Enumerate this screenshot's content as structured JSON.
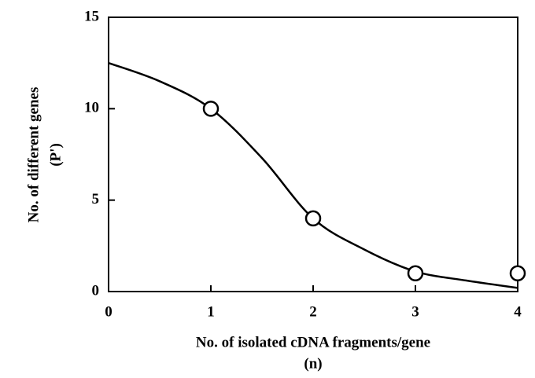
{
  "chart_data": {
    "type": "scatter",
    "x_label": "No. of isolated cDNA fragments/gene",
    "x_label_sub": "(n)",
    "y_label": "No. of different genes",
    "y_label_sub": "(P')",
    "xlim": [
      0,
      4
    ],
    "xticks": [
      0,
      1,
      2,
      3,
      4
    ],
    "ylim": [
      0,
      15
    ],
    "yticks": [
      0,
      5,
      10,
      15
    ],
    "series": [
      {
        "type": "line",
        "color": "#000000",
        "x": [
          0,
          0.5,
          1,
          1.5,
          2,
          2.5,
          3,
          3.5,
          4
        ],
        "values": [
          12.5,
          11.5,
          10,
          7.3,
          4,
          2.3,
          1.1,
          0.6,
          0.2
        ]
      },
      {
        "type": "scatter",
        "color": "#000000",
        "x": [
          1,
          2,
          3,
          4
        ],
        "values": [
          10,
          4,
          1,
          1
        ]
      }
    ]
  }
}
